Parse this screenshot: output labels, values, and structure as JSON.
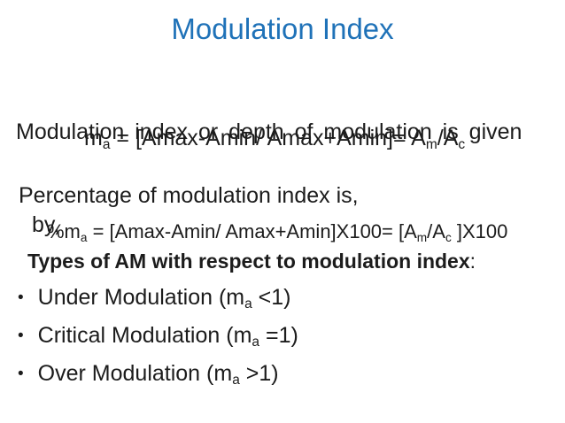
{
  "slide": {
    "title": "Modulation Index",
    "intro": {
      "line1": "Modulation index or depth of modulation is given",
      "line2": "by,"
    },
    "formula1": {
      "base": "m",
      "sub_a": "a",
      "body": " = [Amax-Amin/ Amax+Amin]= A",
      "sub_m": "m",
      "over": "/A",
      "sub_c": "c"
    },
    "percentage_label": "Percentage of modulation index is,",
    "formula2": {
      "base": "%m",
      "sub_a": "a",
      "body": " = [Amax-Amin/ Amax+Amin]X100= [A",
      "sub_m": "m",
      "over": "/A",
      "sub_c": "c",
      "tail": " ]X100"
    },
    "types_heading": "Types of AM with respect to modulation index",
    "types_colon": ":",
    "bullet_glyph": "•",
    "bullets": [
      {
        "pre": "Under Modulation (m",
        "sub": "a",
        "post": " <1)"
      },
      {
        "pre": "Critical Modulation (m",
        "sub": "a",
        "post": " =1)"
      },
      {
        "pre": "Over Modulation (m",
        "sub": "a",
        "post": " >1)"
      }
    ],
    "colors": {
      "title": "#1f72b8",
      "text": "#1c1c1c",
      "background": "#ffffff"
    }
  }
}
